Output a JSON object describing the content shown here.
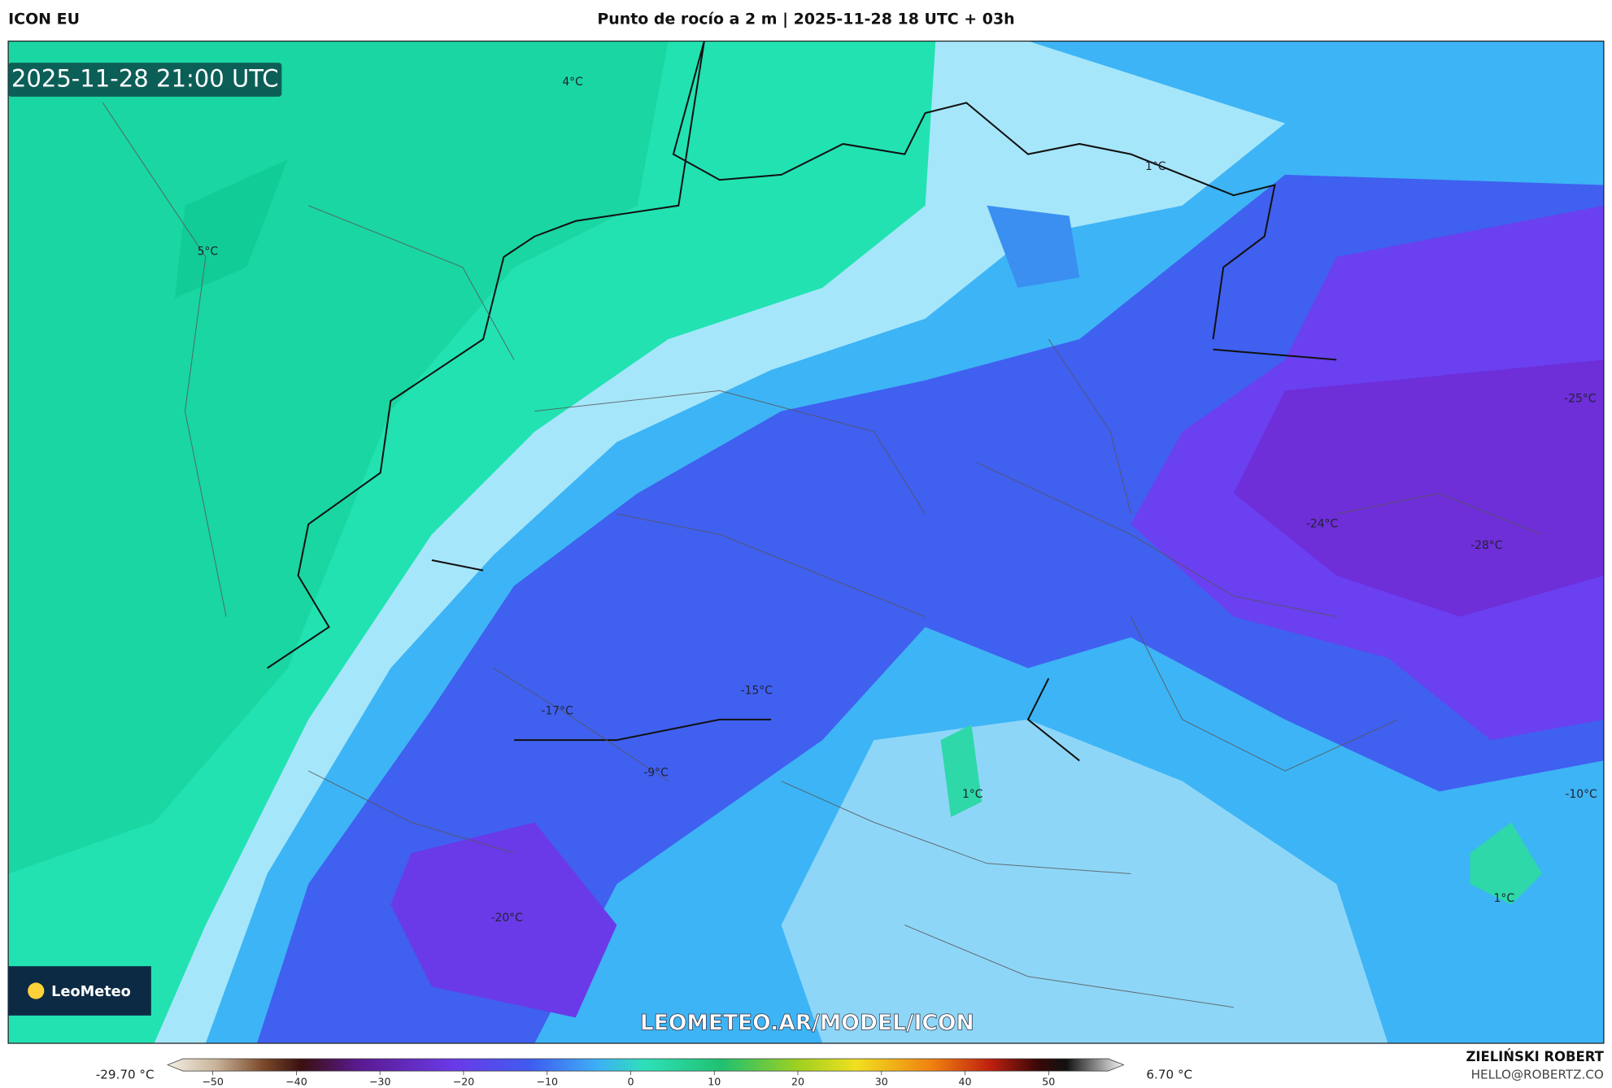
{
  "header": {
    "model": "ICON EU",
    "title": "Punto de rocío a 2 m | 2025-11-28 18 UTC + 03h"
  },
  "map": {
    "valid_time": "2025-11-28 21:00 UTC",
    "labels": [
      {
        "text": "4°C"
      },
      {
        "text": "5°C"
      },
      {
        "text": "1°C"
      },
      {
        "text": "-25°C"
      },
      {
        "text": "-24°C"
      },
      {
        "text": "-28°C"
      },
      {
        "text": "-17°C"
      },
      {
        "text": "-15°C"
      },
      {
        "text": "-9°C"
      },
      {
        "text": "1°C"
      },
      {
        "text": "-10°C"
      },
      {
        "text": "1°C"
      },
      {
        "text": "-20°C"
      }
    ],
    "logo": "LeoMeteo",
    "watermark": "LEOMETEO.AR/MODEL/ICON"
  },
  "colorbar": {
    "min": "-29.70 °C",
    "max": "6.70 °C",
    "ticks": [
      "−50",
      "−40",
      "−30",
      "−20",
      "−10",
      "0",
      "10",
      "20",
      "30",
      "40",
      "50"
    ]
  },
  "footer": {
    "author": "ZIELIŃSKI ROBERT",
    "contact": "HELLO@ROBERTZ.CO"
  }
}
